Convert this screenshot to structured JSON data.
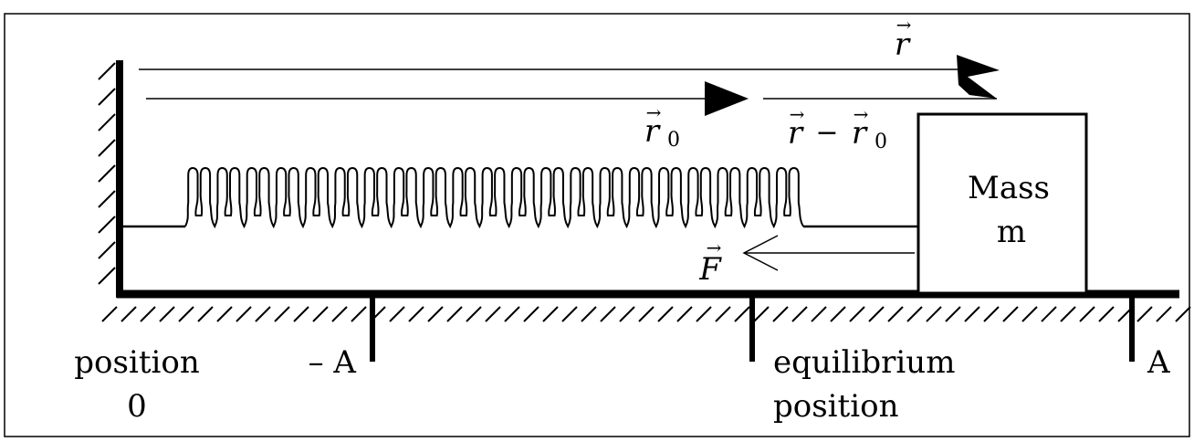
{
  "vectors": {
    "r": {
      "base": "r",
      "arrow": "→"
    },
    "r0": {
      "base": "r",
      "sub": "0",
      "arrow": "→"
    },
    "diff": {
      "a": "r",
      "minus": "−",
      "b": "r",
      "b_sub": "0",
      "arrow": "→"
    },
    "F": {
      "base": "F",
      "arrow": "→"
    }
  },
  "mass": {
    "line1": "Mass",
    "line2": "m"
  },
  "positions": {
    "origin": {
      "line1": "position",
      "line2": "0"
    },
    "neg_amplitude": "– A",
    "equilibrium": {
      "line1": "equilibrium",
      "line2": "position"
    },
    "pos_amplitude": "A"
  }
}
